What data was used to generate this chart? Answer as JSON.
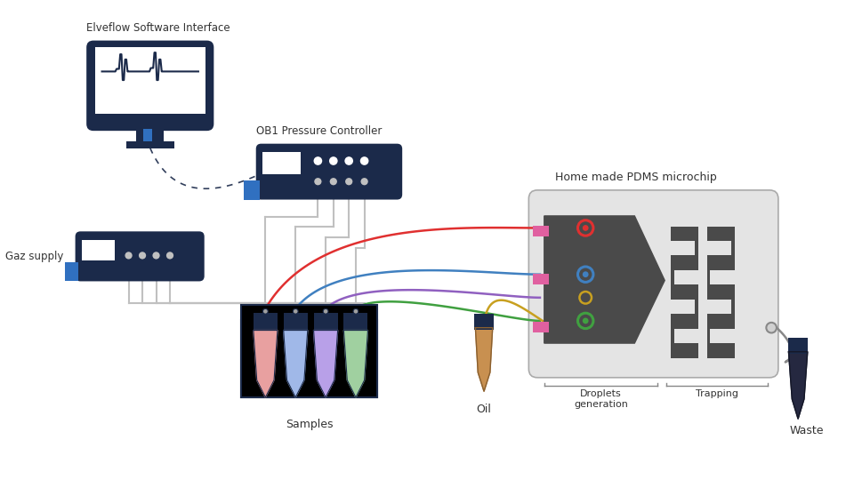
{
  "bg_color": "#ffffff",
  "dark_blue": "#1b2a4a",
  "connector_blue": "#3070c0",
  "title_color": "#333333",
  "labels": {
    "software": "Elveflow Software Interface",
    "pressure": "OB1 Pressure Controller",
    "gaz": "Gaz supply",
    "chip": "Home made PDMS microchip",
    "droplets": "Droplets\ngeneration",
    "trapping": "Trapping",
    "samples": "Samples",
    "oil": "Oil",
    "waste": "Waste"
  },
  "tube_colors": [
    "#e8a0a0",
    "#a0b8e8",
    "#b8a0e8",
    "#a0d0a0"
  ],
  "colors_tubes": [
    "#e03030",
    "#4080c0",
    "#9060c0",
    "#40a040"
  ]
}
